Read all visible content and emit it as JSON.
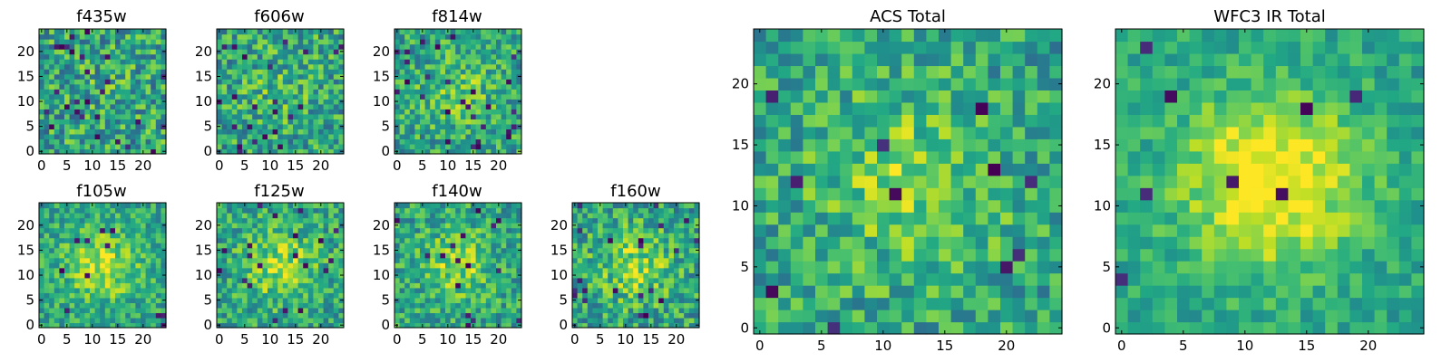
{
  "chart_data": [
    {
      "type": "heatmap",
      "title": "f435w",
      "xticks": [
        0,
        5,
        10,
        15,
        20
      ],
      "yticks": [
        0,
        5,
        10,
        15,
        20
      ],
      "xlim": [
        -0.5,
        24.5
      ],
      "ylim": [
        -0.5,
        24.5
      ],
      "size": [
        25,
        25
      ],
      "peak": [
        12,
        12
      ],
      "colormap": "viridis",
      "seed": 11,
      "concentration": 0.05,
      "width": 0.2,
      "noise": 0.28,
      "outliers": 0.035,
      "grid": false
    },
    {
      "type": "heatmap",
      "title": "f606w",
      "xticks": [
        0,
        5,
        10,
        15,
        20
      ],
      "yticks": [
        0,
        5,
        10,
        15,
        20
      ],
      "xlim": [
        -0.5,
        24.5
      ],
      "ylim": [
        -0.5,
        24.5
      ],
      "size": [
        25,
        25
      ],
      "peak": [
        12,
        12
      ],
      "colormap": "viridis",
      "seed": 23,
      "concentration": 0.12,
      "width": 0.2,
      "noise": 0.26,
      "outliers": 0.03,
      "grid": false
    },
    {
      "type": "heatmap",
      "title": "f814w",
      "xticks": [
        0,
        5,
        10,
        15,
        20
      ],
      "yticks": [
        0,
        5,
        10,
        15,
        20
      ],
      "xlim": [
        -0.5,
        24.5
      ],
      "ylim": [
        -0.5,
        24.5
      ],
      "size": [
        25,
        25
      ],
      "peak": [
        12,
        12
      ],
      "colormap": "viridis",
      "seed": 37,
      "concentration": 0.25,
      "width": 0.2,
      "noise": 0.24,
      "outliers": 0.03,
      "grid": false
    },
    {
      "type": "heatmap",
      "title": "f105w",
      "xticks": [
        0,
        5,
        10,
        15,
        20
      ],
      "yticks": [
        0,
        5,
        10,
        15,
        20
      ],
      "xlim": [
        -0.5,
        24.5
      ],
      "ylim": [
        -0.5,
        24.5
      ],
      "size": [
        25,
        25
      ],
      "peak": [
        12,
        12
      ],
      "colormap": "viridis",
      "seed": 41,
      "concentration": 0.45,
      "width": 0.2,
      "noise": 0.2,
      "outliers": 0.02,
      "grid": false
    },
    {
      "type": "heatmap",
      "title": "f125w",
      "xticks": [
        0,
        5,
        10,
        15,
        20
      ],
      "yticks": [
        0,
        5,
        10,
        15,
        20
      ],
      "xlim": [
        -0.5,
        24.5
      ],
      "ylim": [
        -0.5,
        24.5
      ],
      "size": [
        25,
        25
      ],
      "peak": [
        12,
        12
      ],
      "colormap": "viridis",
      "seed": 53,
      "concentration": 0.4,
      "width": 0.2,
      "noise": 0.22,
      "outliers": 0.03,
      "grid": false
    },
    {
      "type": "heatmap",
      "title": "f140w",
      "xticks": [
        0,
        5,
        10,
        15,
        20
      ],
      "yticks": [
        0,
        5,
        10,
        15,
        20
      ],
      "xlim": [
        -0.5,
        24.5
      ],
      "ylim": [
        -0.5,
        24.5
      ],
      "size": [
        25,
        25
      ],
      "peak": [
        12,
        12
      ],
      "colormap": "viridis",
      "seed": 67,
      "concentration": 0.35,
      "width": 0.2,
      "noise": 0.22,
      "outliers": 0.03,
      "grid": false
    },
    {
      "type": "heatmap",
      "title": "f160w",
      "xticks": [
        0,
        5,
        10,
        15,
        20
      ],
      "yticks": [
        0,
        5,
        10,
        15,
        20
      ],
      "xlim": [
        -0.5,
        24.5
      ],
      "ylim": [
        -0.5,
        24.5
      ],
      "size": [
        25,
        25
      ],
      "peak": [
        12,
        12
      ],
      "colormap": "viridis",
      "seed": 79,
      "concentration": 0.35,
      "width": 0.2,
      "noise": 0.24,
      "outliers": 0.05,
      "grid": false
    },
    {
      "type": "heatmap",
      "title": "ACS Total",
      "xticks": [
        0,
        5,
        10,
        15,
        20
      ],
      "yticks": [
        0,
        5,
        10,
        15,
        20
      ],
      "xlim": [
        -0.5,
        24.5
      ],
      "ylim": [
        -0.5,
        24.5
      ],
      "size": [
        25,
        25
      ],
      "peak": [
        12,
        12
      ],
      "colormap": "viridis",
      "seed": 97,
      "concentration": 0.35,
      "width": 0.2,
      "noise": 0.22,
      "outliers": 0.02,
      "grid": false
    },
    {
      "type": "heatmap",
      "title": "WFC3 IR Total",
      "xticks": [
        0,
        5,
        10,
        15,
        20
      ],
      "yticks": [
        0,
        5,
        10,
        15,
        20
      ],
      "xlim": [
        -0.5,
        24.5
      ],
      "ylim": [
        -0.5,
        24.5
      ],
      "size": [
        25,
        25
      ],
      "peak": [
        12,
        12
      ],
      "colormap": "viridis",
      "seed": 113,
      "concentration": 0.7,
      "width": 0.2,
      "noise": 0.14,
      "outliers": 0.01,
      "grid": false
    }
  ]
}
